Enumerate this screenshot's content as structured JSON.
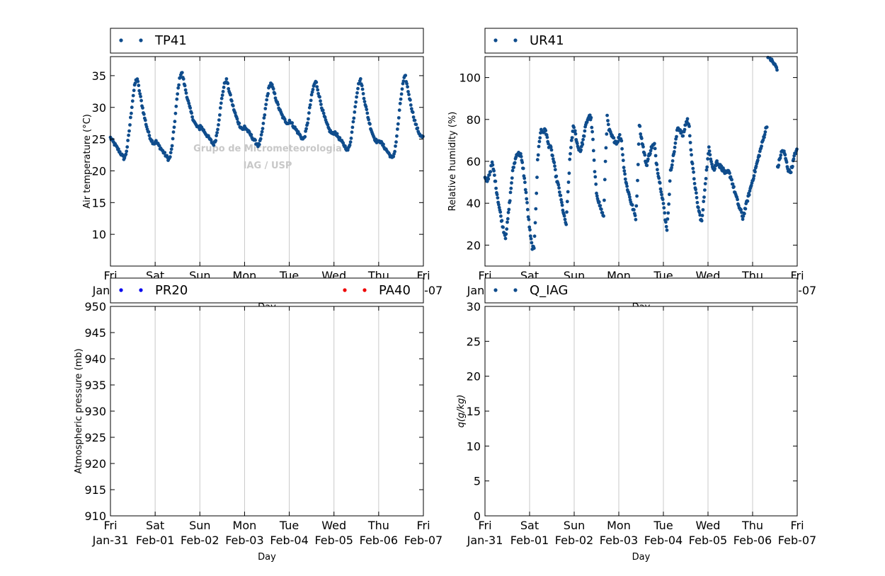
{
  "watermark": {
    "line1": "Grupo de Micrometeorologia",
    "line2": "IAG / USP"
  },
  "colors": {
    "main": "#0f4c8c",
    "pr20": "#0000ee",
    "pa40": "#ee0000",
    "grid": "#c8c8c8"
  },
  "x_ticks": {
    "day_names": [
      "Fri",
      "Sat",
      "Sun",
      "Mon",
      "Tue",
      "Wed",
      "Thu",
      "Fri"
    ],
    "dates": [
      "Jan-31",
      "Feb-01",
      "Feb-02",
      "Feb-03",
      "Feb-04",
      "Feb-05",
      "Feb-06",
      "Feb-07"
    ]
  },
  "chart_data": [
    {
      "type": "scatter",
      "legend": [
        "TP41"
      ],
      "xlabel": "Day",
      "ylabel": "Air temperature (°C)",
      "xlim": [
        "Jan-31",
        "Feb-07"
      ],
      "ylim": [
        5,
        38
      ],
      "yticks": [
        10,
        15,
        20,
        25,
        30,
        35
      ],
      "grid": "vertical",
      "legend_placement": "above",
      "series": [
        {
          "name": "TP41",
          "color": "#0f4c8c",
          "daily_min_max": [
            {
              "day": "Jan-31",
              "start": 25.2,
              "min": 22.0,
              "max": 34.5
            },
            {
              "day": "Feb-01",
              "min": 21.8,
              "max": 35.5
            },
            {
              "day": "Feb-02",
              "min": 24.2,
              "max": 34.3
            },
            {
              "day": "Feb-03",
              "min": 24.0,
              "max": 33.8
            },
            {
              "day": "Feb-04",
              "min": 25.0,
              "max": 34.0
            },
            {
              "day": "Feb-05",
              "min": 23.3,
              "max": 34.3
            },
            {
              "day": "Feb-06",
              "min": 22.0,
              "max": 34.8
            },
            {
              "day": "Feb-07",
              "end": 25.3
            }
          ]
        }
      ]
    },
    {
      "type": "scatter",
      "legend": [
        "UR41"
      ],
      "xlabel": "Day",
      "ylabel": "Relative humidity (%)",
      "xlim": [
        "Jan-31",
        "Feb-07"
      ],
      "ylim": [
        10,
        110
      ],
      "yticks": [
        20,
        40,
        60,
        80,
        100
      ],
      "grid": "vertical",
      "legend_placement": "above",
      "series": [
        {
          "name": "UR41",
          "color": "#0f4c8c",
          "points": [
            [
              0,
              52
            ],
            [
              0.04,
              50
            ],
            [
              0.1,
              54
            ],
            [
              0.16,
              59
            ],
            [
              0.2,
              55
            ],
            [
              0.26,
              46
            ],
            [
              0.32,
              38
            ],
            [
              0.38,
              31
            ],
            [
              0.42,
              27
            ],
            [
              0.46,
              24
            ],
            [
              0.5,
              30
            ],
            [
              0.56,
              42
            ],
            [
              0.62,
              55
            ],
            [
              0.67,
              60
            ],
            [
              0.72,
              64
            ],
            [
              0.8,
              63
            ],
            [
              0.86,
              56
            ],
            [
              0.92,
              45
            ],
            [
              0.97,
              34
            ],
            [
              1.02,
              24
            ],
            [
              1.06,
              19
            ],
            [
              1.1,
              18
            ],
            [
              1.14,
              38
            ],
            [
              1.18,
              60
            ],
            [
              1.22,
              70
            ],
            [
              1.26,
              75
            ],
            [
              1.3,
              74
            ],
            [
              1.36,
              75
            ],
            [
              1.42,
              68
            ],
            [
              1.48,
              66
            ],
            [
              1.54,
              60
            ],
            [
              1.6,
              52
            ],
            [
              1.66,
              47
            ],
            [
              1.72,
              40
            ],
            [
              1.78,
              33
            ],
            [
              1.82,
              30
            ],
            [
              1.86,
              45
            ],
            [
              1.9,
              60
            ],
            [
              1.94,
              70
            ],
            [
              1.98,
              76
            ],
            [
              2.02,
              74
            ],
            [
              2.08,
              67
            ],
            [
              2.14,
              65
            ],
            [
              2.2,
              70
            ],
            [
              2.26,
              77
            ],
            [
              2.3,
              80
            ],
            [
              2.34,
              82
            ],
            [
              2.38,
              80
            ],
            [
              2.42,
              70
            ],
            [
              2.46,
              55
            ],
            [
              2.5,
              45
            ],
            [
              2.56,
              40
            ],
            [
              2.62,
              36
            ],
            [
              2.66,
              33
            ],
            [
              2.7,
              60
            ],
            [
              2.74,
              81
            ],
            [
              2.78,
              75
            ],
            [
              2.84,
              72
            ],
            [
              2.9,
              70
            ],
            [
              2.96,
              69
            ],
            [
              3.02,
              72
            ],
            [
              3.06,
              70
            ],
            [
              3.1,
              60
            ],
            [
              3.16,
              50
            ],
            [
              3.22,
              45
            ],
            [
              3.28,
              40
            ],
            [
              3.34,
              36
            ],
            [
              3.38,
              33
            ],
            [
              3.42,
              50
            ],
            [
              3.46,
              78
            ],
            [
              3.5,
              72
            ],
            [
              3.56,
              65
            ],
            [
              3.62,
              58
            ],
            [
              3.68,
              63
            ],
            [
              3.74,
              67
            ],
            [
              3.8,
              68
            ],
            [
              3.84,
              60
            ],
            [
              3.9,
              52
            ],
            [
              3.96,
              45
            ],
            [
              4.0,
              40
            ],
            [
              4.04,
              32
            ],
            [
              4.08,
              28
            ],
            [
              4.12,
              40
            ],
            [
              4.16,
              55
            ],
            [
              4.22,
              62
            ],
            [
              4.28,
              70
            ],
            [
              4.32,
              76
            ],
            [
              4.38,
              75
            ],
            [
              4.44,
              72
            ],
            [
              4.5,
              78
            ],
            [
              4.54,
              80
            ],
            [
              4.58,
              76
            ],
            [
              4.64,
              60
            ],
            [
              4.7,
              50
            ],
            [
              4.76,
              40
            ],
            [
              4.82,
              34
            ],
            [
              4.86,
              31
            ],
            [
              4.9,
              40
            ],
            [
              4.94,
              50
            ],
            [
              4.98,
              58
            ],
            [
              5.02,
              66
            ],
            [
              5.06,
              62
            ],
            [
              5.1,
              58
            ],
            [
              5.14,
              56
            ],
            [
              5.2,
              60
            ],
            [
              5.26,
              58
            ],
            [
              5.3,
              57
            ],
            [
              5.34,
              56
            ],
            [
              5.4,
              54
            ],
            [
              5.46,
              55
            ],
            [
              5.52,
              52
            ],
            [
              5.58,
              47
            ],
            [
              5.62,
              44
            ],
            [
              5.66,
              41
            ],
            [
              5.7,
              38
            ],
            [
              5.74,
              36
            ],
            [
              5.78,
              33
            ]
          ]
        }
      ]
    },
    {
      "type": "scatter",
      "legend": [
        "PR20",
        "PA40"
      ],
      "xlabel": "Day",
      "ylabel": "Atmospheric pressure (mb)",
      "xlim": [
        "Jan-31",
        "Feb-07"
      ],
      "ylim": [
        910,
        950
      ],
      "yticks": [
        910,
        915,
        920,
        925,
        930,
        935,
        940,
        945,
        950
      ],
      "grid": "vertical",
      "legend_placement": "above",
      "series": [
        {
          "name": "PR20",
          "color": "#0000ee",
          "points": []
        },
        {
          "name": "PA40",
          "color": "#ee0000",
          "points": []
        }
      ]
    },
    {
      "type": "scatter",
      "legend": [
        "Q_IAG"
      ],
      "xlabel": "Day",
      "ylabel": "q(g/kg)",
      "xlim": [
        "Jan-31",
        "Feb-07"
      ],
      "ylim": [
        0,
        30
      ],
      "yticks": [
        0,
        5,
        10,
        15,
        20,
        25,
        30
      ],
      "grid": "vertical",
      "legend_placement": "above",
      "series": [
        {
          "name": "Q_IAG",
          "color": "#0f4c8c",
          "points": []
        }
      ]
    }
  ]
}
